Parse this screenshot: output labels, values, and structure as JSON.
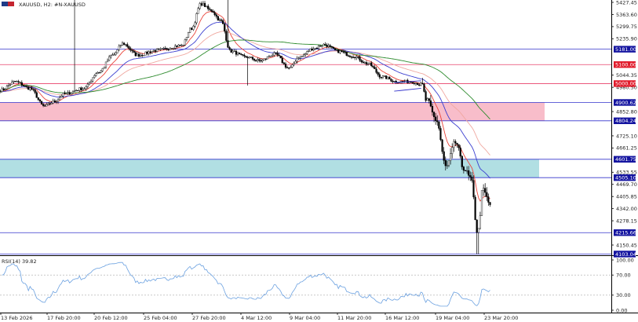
{
  "header": {
    "symbol_text": "XAUUSD, H2:  #N-XAUUSD"
  },
  "colors": {
    "candle": "#000000",
    "ema_fast": "#e8443a",
    "ema_mid": "#3b3fd0",
    "ema_slow": "#f0a8a0",
    "sma_long": "#2e8b2e",
    "level_line": "#3333cc",
    "red_level_line": "#e8406a",
    "supply_zone": "#f7b6c4",
    "demand_zone": "#a9dbe0",
    "rsi_line": "#6aa0e0",
    "badge_blue": "#1414a0",
    "badge_red": "#e11b2b"
  },
  "price_axis": {
    "ticks": [
      "5427.45",
      "5363.60",
      "5299.75",
      "5235.90",
      "5044.35",
      "4980.50",
      "4852.80",
      "4725.10",
      "4661.25",
      "4533.55",
      "4469.70",
      "4405.85",
      "4342.00",
      "4278.15",
      "4150.45"
    ]
  },
  "price_badges": [
    {
      "text": "5181.00",
      "kind": "blue"
    },
    {
      "text": "5100.00",
      "kind": "red"
    },
    {
      "text": "5000.00",
      "kind": "red"
    },
    {
      "text": "4900.62",
      "kind": "blue"
    },
    {
      "text": "4804.24",
      "kind": "blue"
    },
    {
      "text": "4601.75",
      "kind": "blue"
    },
    {
      "text": "4505.10",
      "kind": "blue"
    },
    {
      "text": "4215.66",
      "kind": "blue"
    },
    {
      "text": "4103.04",
      "kind": "blue"
    }
  ],
  "time_axis": {
    "ticks": [
      "13 Feb 2026",
      "17 Feb 20:00",
      "20 Feb 12:00",
      "25 Feb 04:00",
      "27 Feb 20:00",
      "4 Mar 12:00",
      "9 Mar 04:00",
      "11 Mar 20:00",
      "16 Mar 12:00",
      "19 Mar 04:00",
      "23 Mar 20:00"
    ]
  },
  "rsi": {
    "label": "RSI(14) 39.82",
    "ticks": [
      "100.00",
      "70.00",
      "30.00",
      "0.00"
    ]
  },
  "chart_data": {
    "type": "candlestick",
    "symbol": "XAUUSD",
    "timeframe": "H2",
    "y_range": [
      4103,
      5450
    ],
    "key_points": [
      {
        "x": "13 Feb 2026",
        "price": 5000
      },
      {
        "x": "17 Feb 20:00",
        "price": 4880
      },
      {
        "x": "20 Feb 12:00",
        "price": 5070
      },
      {
        "x": "25 Feb 04:00",
        "price": 5180
      },
      {
        "x": "27 Feb 20:00",
        "price": 5430
      },
      {
        "x": "4 Mar 12:00",
        "price": 5150
      },
      {
        "x": "9 Mar 04:00",
        "price": 5130
      },
      {
        "x": "11 Mar 20:00",
        "price": 5140
      },
      {
        "x": "16 Mar 12:00",
        "price": 5010
      },
      {
        "x": "19 Mar 04:00",
        "price": 4630
      },
      {
        "x": "23 Mar 20:00",
        "price": 4370
      }
    ],
    "horizontal_levels": [
      5181.0,
      5100.0,
      5000.0,
      4900.62,
      4804.24,
      4601.75,
      4505.1,
      4215.66,
      4103.04
    ],
    "zones": [
      {
        "top": 4900.62,
        "bottom": 4804.24,
        "type": "supply"
      },
      {
        "top": 4601.75,
        "bottom": 4505.1,
        "type": "demand"
      }
    ],
    "rsi_last": 39.82,
    "rsi_levels": [
      70,
      30
    ]
  }
}
